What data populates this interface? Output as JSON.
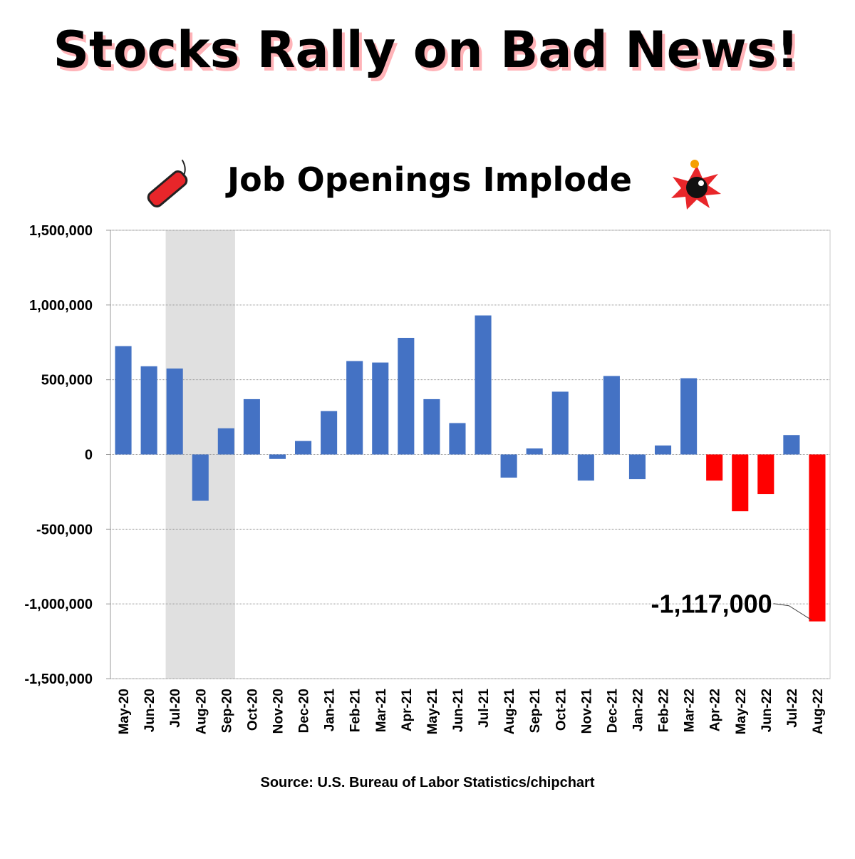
{
  "chart_data": {
    "type": "bar",
    "headline": "Stocks Rally on Bad News!",
    "title": "Job Openings Implode",
    "source": "Source: U.S. Bureau of Labor Statistics/chipchart",
    "categories": [
      "May-20",
      "Jun-20",
      "Jul-20",
      "Aug-20",
      "Sep-20",
      "Oct-20",
      "Nov-20",
      "Dec-20",
      "Jan-21",
      "Feb-21",
      "Mar-21",
      "Apr-21",
      "May-21",
      "Jun-21",
      "Jul-21",
      "Aug-21",
      "Sep-21",
      "Oct-21",
      "Nov-21",
      "Dec-21",
      "Jan-22",
      "Feb-22",
      "Mar-22",
      "Apr-22",
      "May-22",
      "Jun-22",
      "Jul-22",
      "Aug-22"
    ],
    "series": [
      {
        "values": [
          725000,
          590000,
          575000,
          -310000,
          175000,
          370000,
          -30000,
          90000,
          290000,
          625000,
          615000,
          780000,
          370000,
          210000,
          930000,
          -155000,
          40000,
          420000,
          -175000,
          525000,
          -165000,
          60000,
          510000,
          -175000,
          -380000,
          -265000,
          130000,
          -1117000
        ],
        "value_labels": [
          null,
          null,
          null,
          null,
          null,
          null,
          null,
          null,
          null,
          null,
          null,
          null,
          null,
          null,
          null,
          null,
          null,
          null,
          null,
          null,
          null,
          null,
          null,
          null,
          null,
          null,
          null,
          "-1,117,000"
        ],
        "colors": [
          "#4472c4",
          "#4472c4",
          "#4472c4",
          "#4472c4",
          "#4472c4",
          "#4472c4",
          "#4472c4",
          "#4472c4",
          "#4472c4",
          "#4472c4",
          "#4472c4",
          "#4472c4",
          "#4472c4",
          "#4472c4",
          "#4472c4",
          "#4472c4",
          "#4472c4",
          "#4472c4",
          "#4472c4",
          "#4472c4",
          "#4472c4",
          "#4472c4",
          "#4472c4",
          "#ff0000",
          "#ff0000",
          "#ff0000",
          "#4472c4",
          "#ff0000"
        ]
      }
    ],
    "shaded_range": [
      "Jul-20",
      "Sep-20"
    ],
    "ylim": [
      -1500000,
      1500000
    ],
    "yticks": [
      {
        "value": -1500000,
        "label": "-1,500,000"
      },
      {
        "value": -1000000,
        "label": "-1,000,000"
      },
      {
        "value": -500000,
        "label": "-500,000"
      },
      0,
      {
        "value": 500000,
        "label": "500,000"
      },
      {
        "value": 1000000,
        "label": "1,000,000"
      },
      {
        "value": 1500000,
        "label": "1,500,000"
      }
    ],
    "grid": true
  }
}
